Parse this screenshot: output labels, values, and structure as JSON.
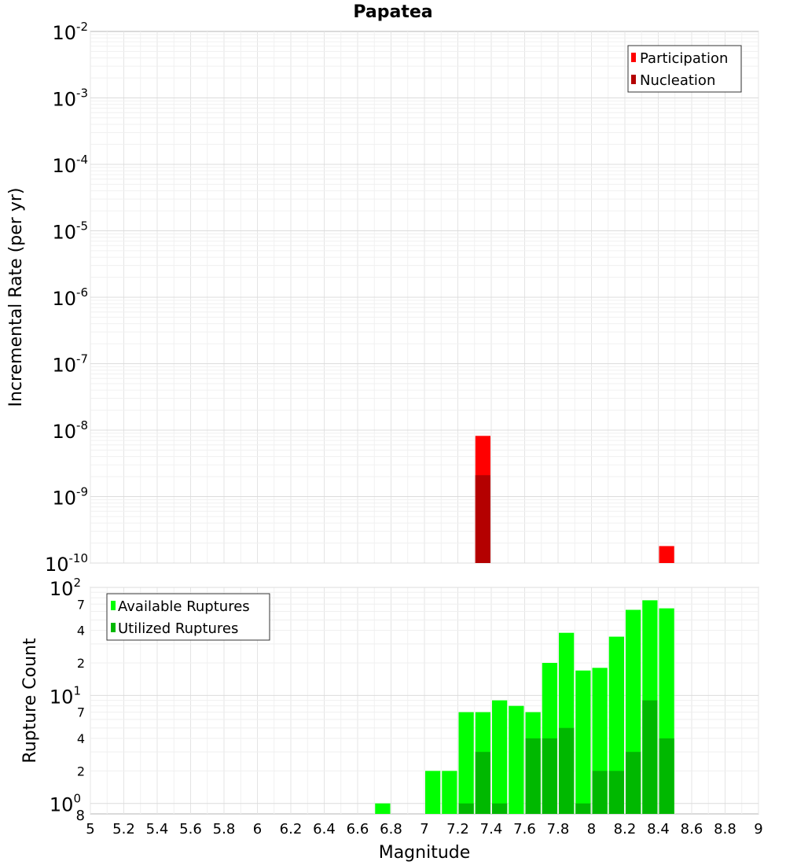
{
  "chart_data": [
    {
      "type": "bar",
      "title": "Papatea",
      "xlabel": "",
      "ylabel": "Incremental Rate (per yr)",
      "xlim": [
        5,
        9
      ],
      "ylim": [
        1e-10,
        0.01
      ],
      "yscale": "log",
      "grid": true,
      "legend_position": "top-right",
      "y_tick_labels": [
        {
          "base": "10",
          "exp": "-2"
        },
        {
          "base": "10",
          "exp": "-3"
        },
        {
          "base": "10",
          "exp": "-4"
        },
        {
          "base": "10",
          "exp": "-5"
        },
        {
          "base": "10",
          "exp": "-6"
        },
        {
          "base": "10",
          "exp": "-7"
        },
        {
          "base": "10",
          "exp": "-8"
        },
        {
          "base": "10",
          "exp": "-9"
        },
        {
          "base": "10",
          "exp": "-10"
        }
      ],
      "bin_width": 0.1,
      "series": [
        {
          "name": "Participation",
          "color": "#ff0000",
          "x": [
            7.35,
            8.45
          ],
          "values": [
            8.2e-09,
            1.8e-10
          ]
        },
        {
          "name": "Nucleation",
          "color": "#b40000",
          "x": [
            7.35
          ],
          "values": [
            2.1e-09
          ]
        }
      ]
    },
    {
      "type": "bar",
      "title": "",
      "xlabel": "Magnitude",
      "ylabel": "Rupture Count",
      "xlim": [
        5,
        9
      ],
      "ylim": [
        0.8,
        100
      ],
      "yscale": "log",
      "grid": true,
      "legend_position": "top-left",
      "x_tick_labels": [
        "5",
        "5.2",
        "5.4",
        "5.6",
        "5.8",
        "6",
        "6.2",
        "6.4",
        "6.6",
        "6.8",
        "7",
        "7.2",
        "7.4",
        "7.6",
        "7.8",
        "8",
        "8.2",
        "8.4",
        "8.6",
        "8.8",
        "9"
      ],
      "y_major_labels": [
        {
          "base": "10",
          "exp": "2"
        },
        {
          "base": "10",
          "exp": "1"
        },
        {
          "base": "10",
          "exp": "0"
        }
      ],
      "y_minor_labels": [
        "7",
        "4",
        "2",
        "7",
        "4",
        "2",
        "8"
      ],
      "bin_width": 0.1,
      "series": [
        {
          "name": "Available Ruptures",
          "color": "#00ff00",
          "x": [
            6.75,
            7.05,
            7.15,
            7.25,
            7.35,
            7.45,
            7.55,
            7.65,
            7.75,
            7.85,
            7.95,
            8.05,
            8.15,
            8.25,
            8.35,
            8.45
          ],
          "values": [
            1,
            2,
            2,
            7,
            7,
            9,
            8,
            7,
            20,
            38,
            17,
            18,
            35,
            62,
            76,
            64
          ]
        },
        {
          "name": "Utilized Ruptures",
          "color": "#00b800",
          "x": [
            7.25,
            7.35,
            7.45,
            7.65,
            7.75,
            7.85,
            7.95,
            8.05,
            8.15,
            8.25,
            8.35,
            8.45
          ],
          "values": [
            1,
            3,
            1,
            4,
            4,
            5,
            1,
            2,
            2,
            3,
            9,
            4
          ]
        }
      ]
    }
  ]
}
